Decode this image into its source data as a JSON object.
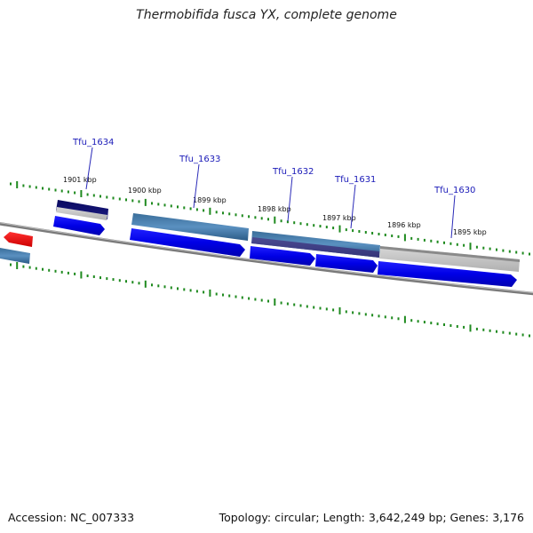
{
  "title": "Thermobifida fusca YX, complete genome",
  "footer": {
    "accession_label": "Accession:",
    "accession": "NC_007333",
    "topology_text": "Topology: circular; Length: 3,642,249 bp; Genes: 3,176"
  },
  "scale_labels": [
    "1901 kbp",
    "1900 kbp",
    "1899 kbp",
    "1898 kbp",
    "1897 kbp",
    "1896 kbp",
    "1895 kbp"
  ],
  "gene_labels": [
    "Tfu_1634",
    "Tfu_1633",
    "Tfu_1632",
    "Tfu_1631",
    "Tfu_1630"
  ],
  "colors": {
    "backbone": "#7a7a7a",
    "tick": "#1f8a1f",
    "cds": "#0a0aee",
    "gene_label": "#1a1ab8",
    "highlight": "#ee1111"
  }
}
